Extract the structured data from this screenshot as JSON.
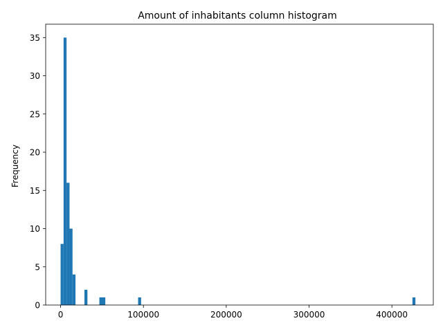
{
  "chart_data": {
    "type": "bar",
    "title": "Amount of inhabitants column histogram",
    "xlabel": "",
    "ylabel": "Frequency",
    "bins": [
      {
        "x0": 0,
        "x1": 3600,
        "count": 8
      },
      {
        "x0": 3600,
        "x1": 7200,
        "count": 35
      },
      {
        "x0": 7200,
        "x1": 10800,
        "count": 16
      },
      {
        "x0": 10800,
        "x1": 14400,
        "count": 10
      },
      {
        "x0": 14400,
        "x1": 18000,
        "count": 4
      },
      {
        "x0": 28800,
        "x1": 32400,
        "count": 2
      },
      {
        "x0": 46800,
        "x1": 54000,
        "count": 1
      },
      {
        "x0": 93600,
        "x1": 97200,
        "count": 1
      },
      {
        "x0": 424800,
        "x1": 428400,
        "count": 1
      }
    ],
    "xlim": [
      -18000,
      450000
    ],
    "ylim": [
      0,
      36.75
    ],
    "xticks": [
      0,
      100000,
      200000,
      300000,
      400000
    ],
    "xtick_labels": [
      "0",
      "100000",
      "200000",
      "300000",
      "400000"
    ],
    "yticks": [
      0,
      5,
      10,
      15,
      20,
      25,
      30,
      35
    ],
    "ytick_labels": [
      "0",
      "5",
      "10",
      "15",
      "20",
      "25",
      "30",
      "35"
    ],
    "color": "#1f77b4",
    "grid": false
  }
}
